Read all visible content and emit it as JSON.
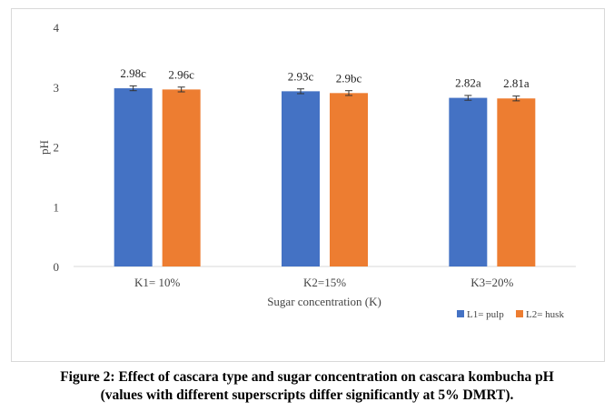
{
  "chart_data": {
    "type": "bar",
    "categories": [
      "K1= 10%",
      "K2=15%",
      "K3=20%"
    ],
    "series": [
      {
        "name": "L1= pulp",
        "color": "#4472C4",
        "values": [
          2.98,
          2.93,
          2.82
        ],
        "labels": [
          "2.98c",
          "2.93c",
          "2.82a"
        ],
        "error": [
          0.04,
          0.04,
          0.04
        ]
      },
      {
        "name": "L2= husk",
        "color": "#ED7D31",
        "values": [
          2.96,
          2.9,
          2.81
        ],
        "labels": [
          "2.96c",
          "2.9bc",
          "2.81a"
        ],
        "error": [
          0.04,
          0.04,
          0.04
        ]
      }
    ],
    "xlabel": "Sugar concentration (K)",
    "ylabel": "pH",
    "ylim": [
      0,
      4
    ],
    "yticks": [
      "0",
      "1",
      "2",
      "3",
      "4"
    ],
    "grid": false,
    "legend_position": "bottom-right"
  },
  "caption": {
    "line1": "Figure 2: Effect of cascara type and sugar concentration on cascara kombucha pH",
    "line2": "(values with different superscripts differ significantly at 5% DMRT)."
  }
}
